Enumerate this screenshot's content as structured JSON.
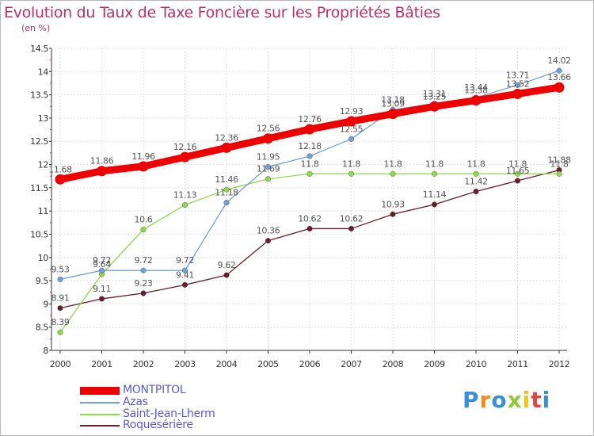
{
  "title": "Evolution du Taux de Taxe Foncière sur les Propriétés Bâties",
  "subtitle": "(en %)",
  "logo_text": "Proxiti",
  "chart_data": {
    "type": "line",
    "x": [
      "2000",
      "2001",
      "2002",
      "2003",
      "2004",
      "2005",
      "2006",
      "2007",
      "2008",
      "2009",
      "2010",
      "2011",
      "2012"
    ],
    "xlim": [
      2000,
      2012
    ],
    "ylim": [
      8,
      14.5
    ],
    "yticks": [
      "8",
      "8.5",
      "9",
      "9.5",
      "10",
      "10.5",
      "11",
      "11.5",
      "12",
      "12.5",
      "13",
      "13.5",
      "14",
      "14.5"
    ],
    "grid": true,
    "legend_position": "bottom-left",
    "series": [
      {
        "name": "Roquesérière",
        "color": "#6b1c2a",
        "values": [
          8.91,
          9.11,
          9.23,
          9.41,
          9.62,
          10.36,
          10.62,
          10.62,
          10.93,
          11.14,
          11.42,
          11.65,
          11.88
        ]
      },
      {
        "name": "Saint-Jean-Lherm",
        "color": "#8fd94a",
        "values": [
          8.39,
          9.64,
          10.6,
          11.13,
          11.46,
          11.69,
          11.8,
          11.8,
          11.8,
          11.8,
          11.8,
          11.8,
          11.8
        ]
      },
      {
        "name": "Azas",
        "color": "#6fa3d8",
        "values": [
          9.53,
          9.72,
          9.72,
          9.72,
          11.18,
          11.95,
          12.18,
          12.55,
          13.18,
          13.31,
          13.44,
          13.71,
          14.02
        ]
      },
      {
        "name": "MONTPITOL",
        "color": "#ee0000",
        "values": [
          11.68,
          11.86,
          11.96,
          12.16,
          12.36,
          12.56,
          12.76,
          12.93,
          13.09,
          13.25,
          13.38,
          13.52,
          13.66
        ]
      }
    ],
    "legend_order": [
      "MONTPITOL",
      "Azas",
      "Saint-Jean-Lherm",
      "Roquesérière"
    ]
  }
}
